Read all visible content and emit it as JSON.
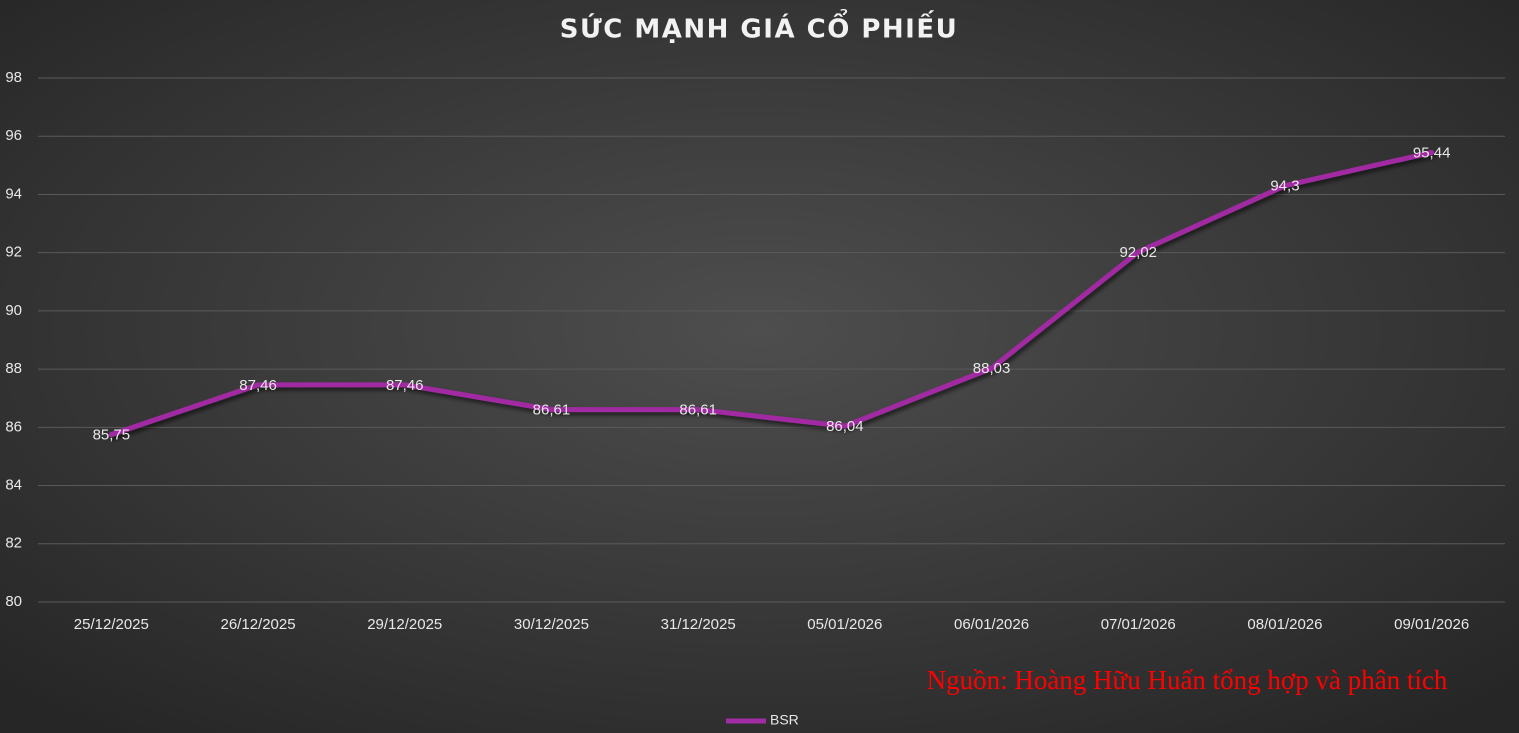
{
  "chart_data": {
    "type": "line",
    "title": "SỨC MẠNH GIÁ CỔ PHIẾU",
    "categories": [
      "25/12/2025",
      "26/12/2025",
      "29/12/2025",
      "30/12/2025",
      "31/12/2025",
      "05/01/2026",
      "06/01/2026",
      "07/01/2026",
      "08/01/2026",
      "09/01/2026"
    ],
    "series": [
      {
        "name": "BSR",
        "color": "#a12ca3",
        "values": [
          85.75,
          87.46,
          87.46,
          86.61,
          86.61,
          86.04,
          88.03,
          92.02,
          94.3,
          95.44
        ],
        "value_labels": [
          "85,75",
          "87,46",
          "87,46",
          "86,61",
          "86,61",
          "86,04",
          "88,03",
          "92,02",
          "94,3",
          "95,44"
        ]
      }
    ],
    "ylim": [
      80,
      98
    ],
    "yticks": [
      80,
      82,
      84,
      86,
      88,
      90,
      92,
      94,
      96,
      98
    ],
    "grid": true,
    "annotation": "Nguồn: Hoàng Hữu Huấn tổng hợp và phân tích",
    "legend": "bottom"
  }
}
